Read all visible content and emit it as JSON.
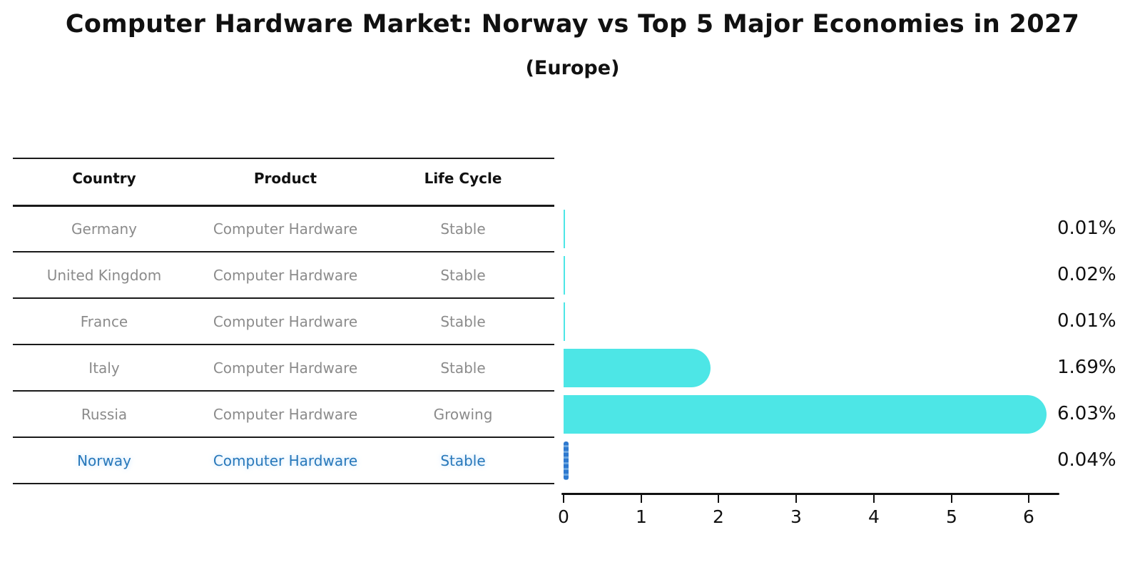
{
  "title": "Computer Hardware Market: Norway vs Top 5 Major Economies in 2027",
  "subtitle": "(Europe)",
  "table": {
    "headers": [
      "Country",
      "Product",
      "Life Cycle"
    ],
    "rows": [
      {
        "country": "Germany",
        "product": "Computer Hardware",
        "life_cycle": "Stable",
        "highlight": false
      },
      {
        "country": "United Kingdom",
        "product": "Computer Hardware",
        "life_cycle": "Stable",
        "highlight": false
      },
      {
        "country": "France",
        "product": "Computer Hardware",
        "life_cycle": "Stable",
        "highlight": false
      },
      {
        "country": "Italy",
        "product": "Computer Hardware",
        "life_cycle": "Stable",
        "highlight": false
      },
      {
        "country": "Russia",
        "product": "Computer Hardware",
        "life_cycle": "Growing",
        "highlight": false
      },
      {
        "country": "Norway",
        "product": "Computer Hardware",
        "life_cycle": "Stable",
        "highlight": true
      }
    ]
  },
  "chart_data": {
    "type": "bar",
    "orientation": "horizontal",
    "title": "Computer Hardware Market: Norway vs Top 5 Major Economies in 2027",
    "subtitle": "(Europe)",
    "categories": [
      "Germany",
      "United Kingdom",
      "France",
      "Italy",
      "Russia",
      "Norway"
    ],
    "values": [
      0.01,
      0.02,
      0.01,
      1.69,
      6.03,
      0.04
    ],
    "value_labels": [
      "0.01%",
      "0.02%",
      "0.01%",
      "1.69%",
      "6.03%",
      "0.04%"
    ],
    "xlabel": "",
    "ylabel": "",
    "xlim": [
      0,
      6.5
    ],
    "x_ticks": [
      "0",
      "1",
      "2",
      "3",
      "4",
      "5",
      "6"
    ],
    "grid": false,
    "legend": "none",
    "bar_color": "#4DE6E6",
    "highlight_index": 5,
    "highlight_bar_color": "#2E79CF",
    "highlight_bar_color_light": "#6BA6E0",
    "highlight_text_color": "#2878BA"
  }
}
